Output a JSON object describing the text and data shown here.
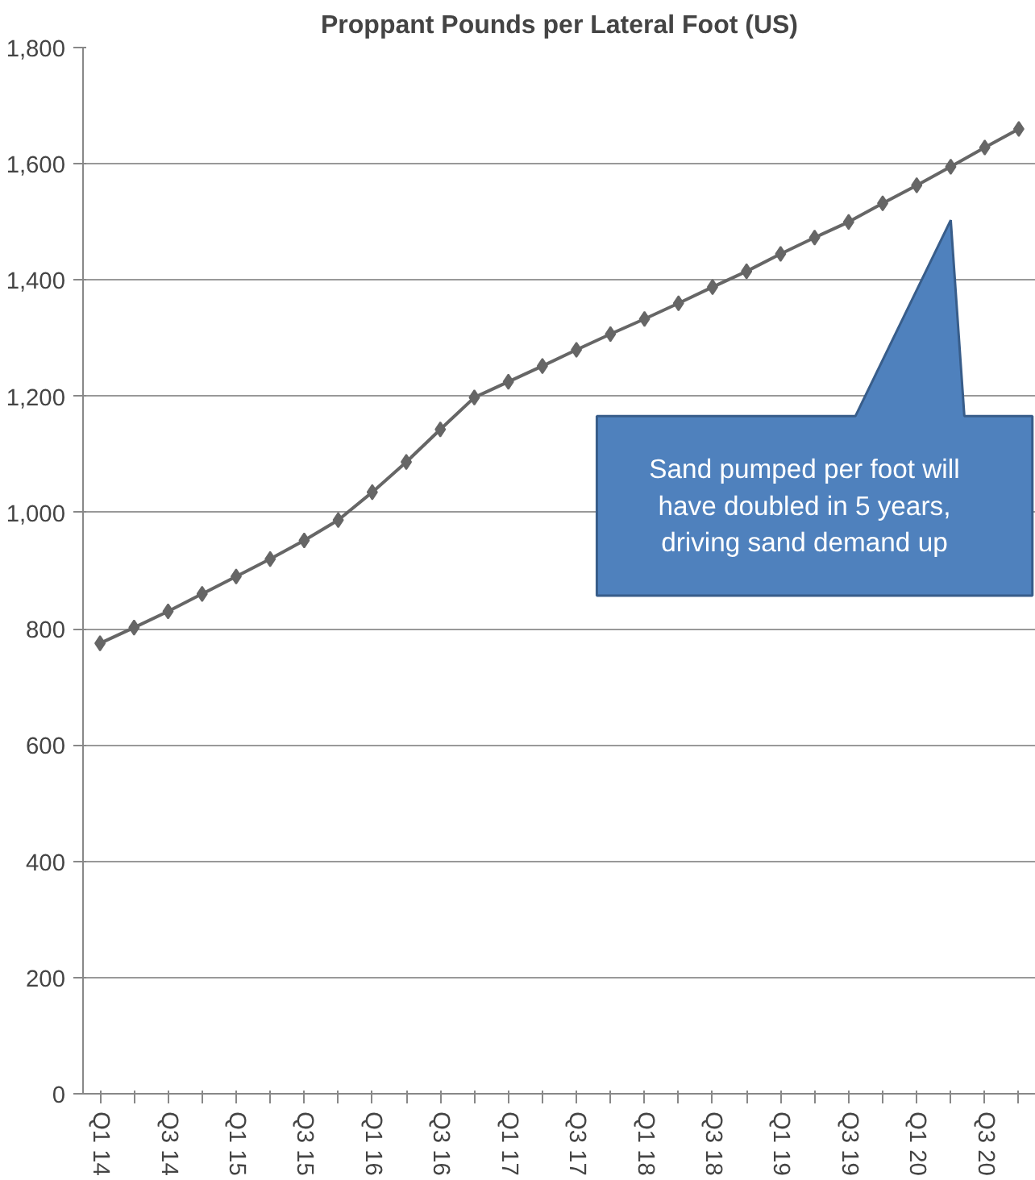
{
  "chart_data": {
    "type": "line",
    "title": "Proppant Pounds per Lateral Foot (US)",
    "categories": [
      "Q1 14",
      null,
      "Q3 14",
      null,
      "Q1 15",
      null,
      "Q3 15",
      null,
      "Q1 16",
      null,
      "Q3 16",
      null,
      "Q1 17",
      null,
      "Q3 17",
      null,
      "Q1 18",
      null,
      "Q3 18",
      null,
      "Q1 19",
      null,
      "Q3 19",
      null,
      "Q1 20",
      null,
      "Q3 20",
      null
    ],
    "series": [
      {
        "color": "#666666",
        "values": [
          775,
          802,
          830,
          860,
          890,
          920,
          952,
          987,
          1035,
          1087,
          1143,
          1198,
          1225,
          1252,
          1280,
          1307,
          1333,
          1360,
          1388,
          1415,
          1445,
          1473,
          1500,
          1532,
          1563,
          1595,
          1628,
          1660
        ]
      }
    ],
    "ylim": [
      0,
      1800
    ],
    "yticks": [
      0,
      {
        "value": 200,
        "label": "200"
      },
      {
        "value": 400,
        "label": "400"
      },
      {
        "value": 600,
        "label": "600"
      },
      {
        "value": 800,
        "label": "800"
      },
      {
        "value": 1000,
        "label": "1,000"
      },
      {
        "value": 1200,
        "label": "1,200"
      },
      {
        "value": 1400,
        "label": "1,400"
      },
      {
        "value": 1600,
        "label": "1,600"
      },
      {
        "value": 1800,
        "label": "1,800"
      }
    ],
    "annotations": [
      "Sand pumped per foot will have doubled in 5 years, driving sand demand up"
    ],
    "grid": "y",
    "marker": "diamond",
    "line_style": "solid"
  }
}
